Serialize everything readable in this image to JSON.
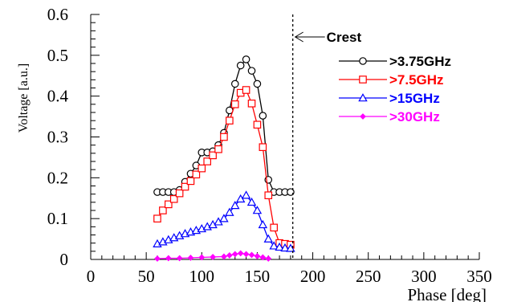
{
  "chart_data": {
    "type": "line",
    "title": "",
    "xlabel": "Phase  [deg]",
    "ylabel": "Voltage [a.u.]",
    "xlim": [
      0,
      350
    ],
    "ylim": [
      0,
      0.6
    ],
    "x_ticks": [
      0,
      50,
      100,
      150,
      200,
      250,
      300,
      350
    ],
    "x_tick_labels": [
      "0",
      "50",
      "100",
      "150",
      "200",
      "250",
      "300",
      "350"
    ],
    "y_ticks": [
      0,
      0.1,
      0.2,
      0.3,
      0.4,
      0.5,
      0.6
    ],
    "y_tick_labels": [
      "0",
      "0.1",
      "0.2",
      "0.3",
      "0.4",
      "0.5",
      "0.6"
    ],
    "grid": false,
    "legend_position": "right",
    "annotations": [
      {
        "text": "Crest",
        "x": 182,
        "style": "vertical-dashed-line-with-arrow"
      }
    ],
    "series": [
      {
        "name": ">3.75GHz",
        "color": "#000000",
        "marker": "circle",
        "x": [
          60,
          65,
          70,
          75,
          80,
          85,
          90,
          95,
          100,
          105,
          110,
          115,
          120,
          125,
          130,
          135,
          140,
          145,
          150,
          155,
          160,
          165,
          170,
          175,
          180
        ],
        "y": [
          0.165,
          0.165,
          0.165,
          0.165,
          0.17,
          0.19,
          0.21,
          0.23,
          0.262,
          0.262,
          0.265,
          0.28,
          0.31,
          0.365,
          0.43,
          0.475,
          0.49,
          0.462,
          0.43,
          0.352,
          0.195,
          0.165,
          0.165,
          0.165,
          0.165
        ]
      },
      {
        "name": ">7.5GHz",
        "color": "#ff0000",
        "marker": "square",
        "x": [
          60,
          65,
          70,
          75,
          80,
          85,
          90,
          95,
          100,
          105,
          110,
          115,
          120,
          125,
          130,
          135,
          140,
          145,
          150,
          155,
          160,
          165,
          170,
          175,
          180
        ],
        "y": [
          0.1,
          0.12,
          0.135,
          0.148,
          0.162,
          0.178,
          0.192,
          0.208,
          0.223,
          0.24,
          0.255,
          0.27,
          0.3,
          0.34,
          0.38,
          0.408,
          0.415,
          0.382,
          0.33,
          0.275,
          0.157,
          0.078,
          0.04,
          0.038,
          0.036
        ]
      },
      {
        "name": ">15GHz",
        "color": "#0000ff",
        "marker": "triangle",
        "x": [
          60,
          65,
          70,
          75,
          80,
          85,
          90,
          95,
          100,
          105,
          110,
          115,
          120,
          125,
          130,
          135,
          140,
          145,
          150,
          155,
          160,
          165,
          170,
          175,
          180
        ],
        "y": [
          0.038,
          0.043,
          0.048,
          0.053,
          0.058,
          0.063,
          0.067,
          0.071,
          0.075,
          0.08,
          0.085,
          0.092,
          0.1,
          0.115,
          0.132,
          0.148,
          0.157,
          0.14,
          0.12,
          0.085,
          0.05,
          0.033,
          0.03,
          0.028,
          0.027
        ]
      },
      {
        "name": ">30GHz",
        "color": "#ff00ff",
        "marker": "diamond",
        "x": [
          60,
          70,
          80,
          90,
          100,
          110,
          120,
          125,
          130,
          135,
          140,
          145,
          150,
          155,
          160
        ],
        "y": [
          0.002,
          0.003,
          0.003,
          0.004,
          0.005,
          0.006,
          0.007,
          0.01,
          0.013,
          0.015,
          0.013,
          0.011,
          0.008,
          0.005,
          0.002
        ]
      }
    ]
  }
}
